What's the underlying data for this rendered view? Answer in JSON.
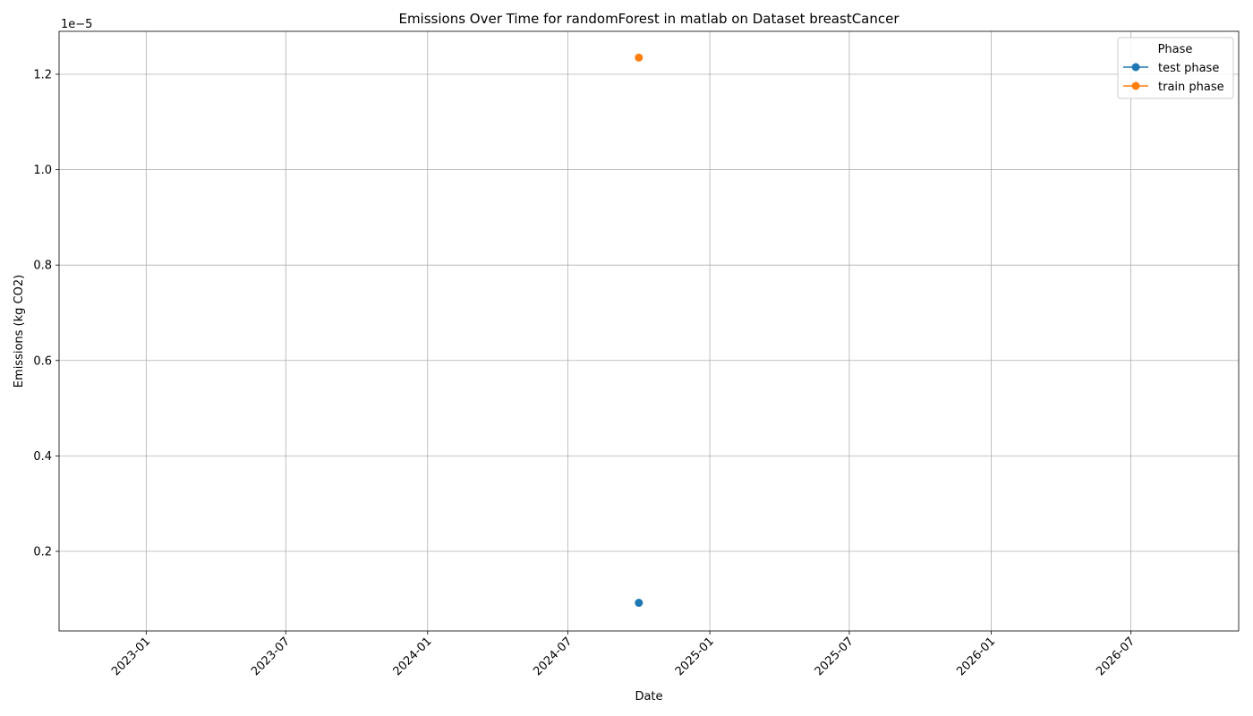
{
  "chart_data": {
    "type": "line",
    "title": "Emissions Over Time for randomForest in matlab on Dataset breastCancer",
    "xlabel": "Date",
    "ylabel": "Emissions (kg CO2)",
    "y_offset_label": "1e−5",
    "y_scale_exponent": -5,
    "x_axis_type": "date",
    "xlim": [
      "2022-09-10",
      "2026-11-18"
    ],
    "ylim": [
      0.033,
      1.29
    ],
    "x_ticks": [
      "2023-01-01",
      "2023-07-01",
      "2024-01-01",
      "2024-07-01",
      "2025-01-01",
      "2025-07-01",
      "2026-01-01",
      "2026-07-01"
    ],
    "x_tick_labels": [
      "2023-01",
      "2023-07",
      "2024-01",
      "2024-07",
      "2025-01",
      "2025-07",
      "2026-01",
      "2026-07"
    ],
    "y_ticks": [
      0.2,
      0.4,
      0.6,
      0.8,
      1.0,
      1.2
    ],
    "y_tick_labels": [
      "0.2",
      "0.4",
      "0.6",
      "0.8",
      "1.0",
      "1.2"
    ],
    "grid": true,
    "legend": {
      "title": "Phase",
      "placement": "top-right"
    },
    "series": [
      {
        "name": "test phase",
        "color": "#1f77b4",
        "marker": "circle",
        "points": [
          {
            "x": "2024-10-01",
            "y": 0.092
          }
        ]
      },
      {
        "name": "train phase",
        "color": "#ff7f0e",
        "marker": "circle",
        "points": [
          {
            "x": "2024-10-01",
            "y": 1.235
          }
        ]
      }
    ]
  }
}
